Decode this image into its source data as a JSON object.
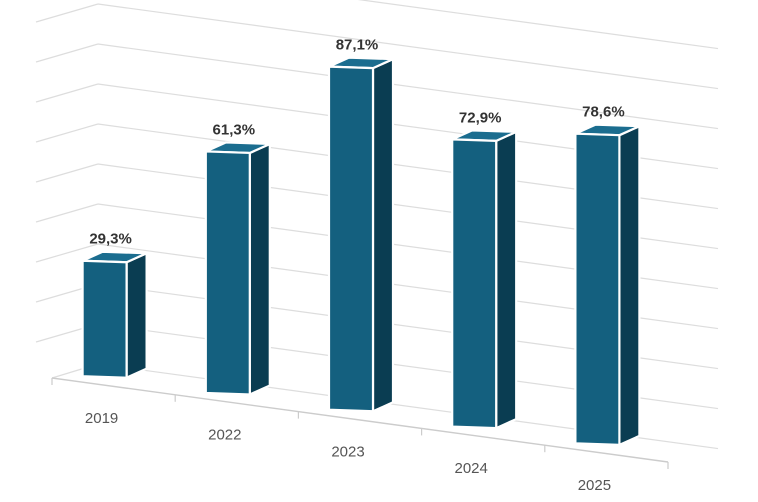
{
  "chart_data": {
    "type": "bar",
    "title": "",
    "xlabel": "",
    "ylabel": "",
    "categories": [
      "2019",
      "2022",
      "2023",
      "2024",
      "2025"
    ],
    "values": [
      29.3,
      61.3,
      87.1,
      72.9,
      78.6
    ],
    "value_labels": [
      "29,3%",
      "61,3%",
      "87,1%",
      "72,9%",
      "78,6%"
    ],
    "ylim": [
      0,
      100
    ],
    "grid": true,
    "legend": "none",
    "colors": {
      "front": "#14607f",
      "side": "#0a3d52",
      "top": "#1b6d8f",
      "edge": "#ffffff",
      "grid": "#dddddd"
    }
  }
}
